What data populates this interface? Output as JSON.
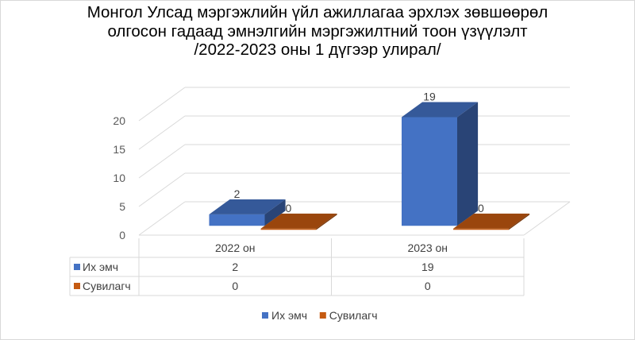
{
  "chart_data": {
    "type": "bar",
    "title_lines": [
      "Монгол Улсад мэргэжлийн үйл ажиллагаа эрхлэх зөвшөөрөл",
      "олгосон гадаад эмнэлгийн мэргэжилтний тоон үзүүлэлт",
      "/2022-2023 оны 1 дүгээр улирал/"
    ],
    "categories": [
      "2022 он",
      "2023 он"
    ],
    "series": [
      {
        "name": "Их эмч",
        "values": [
          2,
          19
        ],
        "color": "#4472c4"
      },
      {
        "name": "Сувилагч",
        "values": [
          0,
          0
        ],
        "color": "#c55a11"
      }
    ],
    "yticks": [
      0,
      5,
      10,
      15,
      20
    ],
    "ylim": [
      0,
      20
    ],
    "grid": true,
    "legend": "bottom",
    "data_table": true
  }
}
